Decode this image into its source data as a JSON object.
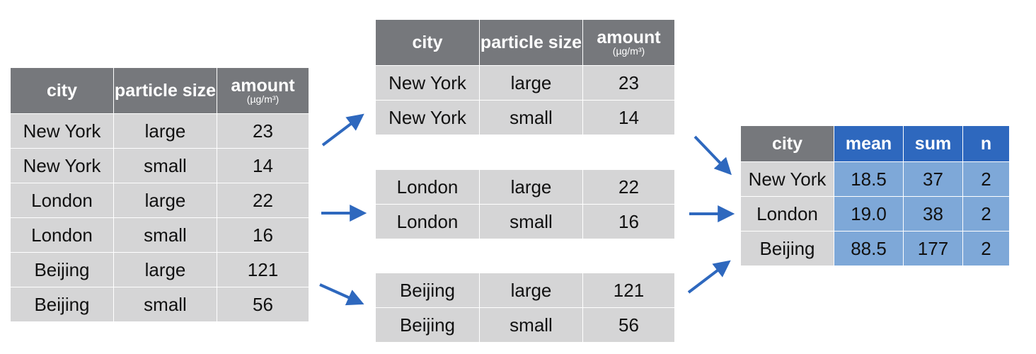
{
  "colors": {
    "header_gray": "#76787c",
    "cell_gray": "#d5d5d6",
    "header_blue": "#2e68be",
    "cell_blue": "#7ea8d8",
    "arrow": "#2e68be"
  },
  "input_table": {
    "headers": {
      "city": "city",
      "particle_size": "particle size",
      "amount": "amount",
      "amount_unit": "(µg/m³)"
    },
    "rows": [
      {
        "city": "New York",
        "size": "large",
        "amount": "23"
      },
      {
        "city": "New York",
        "size": "small",
        "amount": "14"
      },
      {
        "city": "London",
        "size": "large",
        "amount": "22"
      },
      {
        "city": "London",
        "size": "small",
        "amount": "16"
      },
      {
        "city": "Beijing",
        "size": "large",
        "amount": "121"
      },
      {
        "city": "Beijing",
        "size": "small",
        "amount": "56"
      }
    ]
  },
  "groups": {
    "headers": {
      "city": "city",
      "particle_size": "particle size",
      "amount": "amount",
      "amount_unit": "(µg/m³)"
    },
    "new_york": [
      {
        "city": "New York",
        "size": "large",
        "amount": "23"
      },
      {
        "city": "New York",
        "size": "small",
        "amount": "14"
      }
    ],
    "london": [
      {
        "city": "London",
        "size": "large",
        "amount": "22"
      },
      {
        "city": "London",
        "size": "small",
        "amount": "16"
      }
    ],
    "beijing": [
      {
        "city": "Beijing",
        "size": "large",
        "amount": "121"
      },
      {
        "city": "Beijing",
        "size": "small",
        "amount": "56"
      }
    ]
  },
  "summary_table": {
    "headers": {
      "city": "city",
      "mean": "mean",
      "sum": "sum",
      "n": "n"
    },
    "rows": [
      {
        "city": "New York",
        "mean": "18.5",
        "sum": "37",
        "n": "2"
      },
      {
        "city": "London",
        "mean": "19.0",
        "sum": "38",
        "n": "2"
      },
      {
        "city": "Beijing",
        "mean": "88.5",
        "sum": "177",
        "n": "2"
      }
    ]
  }
}
